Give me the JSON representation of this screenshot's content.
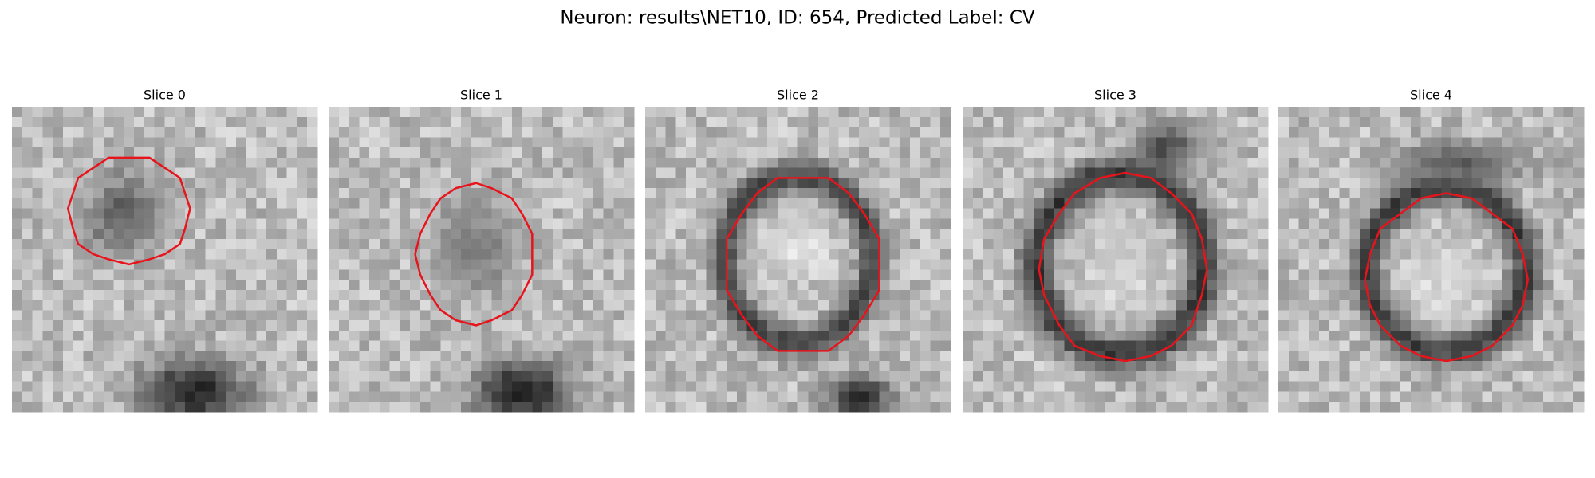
{
  "title": "Neuron: results\\NET10, ID: 654, Predicted Label: CV",
  "panels": [
    {
      "title": "Slice 0"
    },
    {
      "title": "Slice 1"
    },
    {
      "title": "Slice 2"
    },
    {
      "title": "Slice 3"
    },
    {
      "title": "Slice 4"
    }
  ]
}
